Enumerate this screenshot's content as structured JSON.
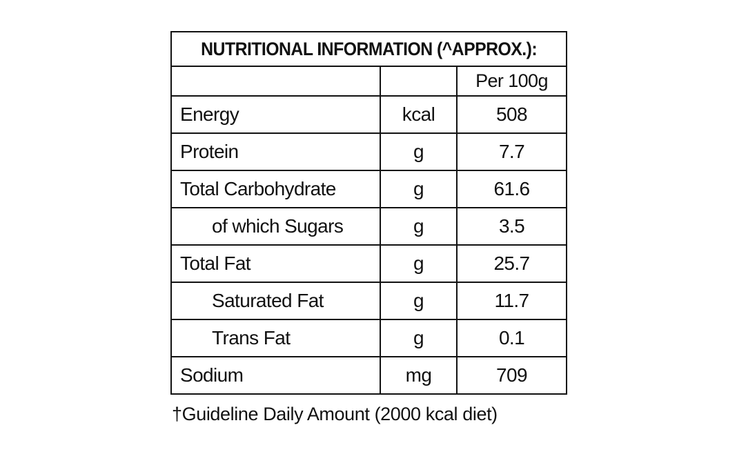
{
  "table": {
    "title": "NUTRITIONAL INFORMATION (^APPROX.):",
    "column_header": "Per 100g",
    "rows": [
      {
        "name": "Energy",
        "unit": "kcal",
        "value": "508",
        "indent": false
      },
      {
        "name": "Protein",
        "unit": "g",
        "value": "7.7",
        "indent": false
      },
      {
        "name": "Total Carbohydrate",
        "unit": "g",
        "value": "61.6",
        "indent": false
      },
      {
        "name": "of which Sugars",
        "unit": "g",
        "value": "3.5",
        "indent": true
      },
      {
        "name": "Total Fat",
        "unit": "g",
        "value": "25.7",
        "indent": false
      },
      {
        "name": "Saturated Fat",
        "unit": "g",
        "value": "11.7",
        "indent": true
      },
      {
        "name": "Trans Fat",
        "unit": "g",
        "value": "0.1",
        "indent": true
      },
      {
        "name": "Sodium",
        "unit": "mg",
        "value": "709",
        "indent": false
      }
    ]
  },
  "footnote": "†Guideline Daily Amount (2000 kcal diet)"
}
